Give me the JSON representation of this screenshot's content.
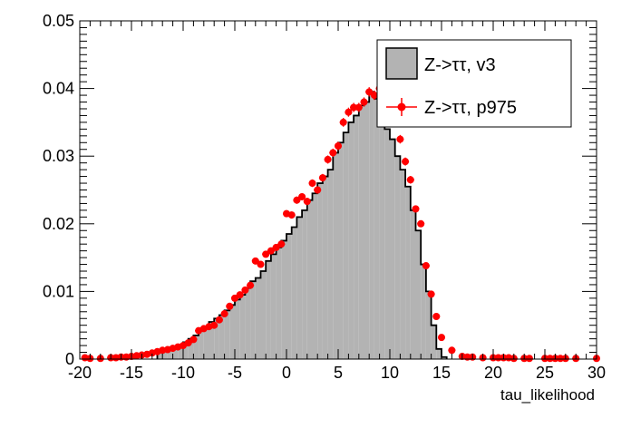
{
  "chart_data": {
    "type": "bar",
    "title": "",
    "xlabel": "tau_likelihood",
    "ylabel": "",
    "xlim": [
      -20,
      30
    ],
    "ylim": [
      0,
      0.05
    ],
    "x_ticks": [
      "-20",
      "-15",
      "-10",
      "-5",
      "0",
      "5",
      "10",
      "15",
      "20",
      "25",
      "30"
    ],
    "y_ticks": [
      "0",
      "0.01",
      "0.02",
      "0.03",
      "0.04",
      "0.05"
    ],
    "grid": false,
    "legend_position": "top-right",
    "bin_width": 0.5,
    "series": [
      {
        "name": "Z->ττ, v3",
        "style": "filled-histogram",
        "color": "#b3b3b3",
        "edge_color": "#000000",
        "x": [
          -12.5,
          -12.0,
          -11.5,
          -11.0,
          -10.5,
          -10.0,
          -9.5,
          -9.0,
          -8.5,
          -8.0,
          -7.5,
          -7.0,
          -6.5,
          -6.0,
          -5.5,
          -5.0,
          -4.5,
          -4.0,
          -3.5,
          -3.0,
          -2.5,
          -2.0,
          -1.5,
          -1.0,
          -0.5,
          0.0,
          0.5,
          1.0,
          1.5,
          2.0,
          2.5,
          3.0,
          3.5,
          4.0,
          4.5,
          5.0,
          5.5,
          6.0,
          6.5,
          7.0,
          7.5,
          8.0,
          8.5,
          9.0,
          9.5,
          10.0,
          10.5,
          11.0,
          11.5,
          12.0,
          12.5,
          13.0,
          13.5,
          14.0,
          14.5,
          15.0
        ],
        "values": [
          0.001,
          0.0012,
          0.0015,
          0.0018,
          0.002,
          0.0025,
          0.003,
          0.0035,
          0.0042,
          0.0048,
          0.0055,
          0.006,
          0.0065,
          0.0072,
          0.008,
          0.0088,
          0.0095,
          0.0105,
          0.0115,
          0.012,
          0.013,
          0.0145,
          0.0155,
          0.0165,
          0.0175,
          0.0185,
          0.0195,
          0.021,
          0.022,
          0.0235,
          0.0245,
          0.026,
          0.027,
          0.028,
          0.0305,
          0.032,
          0.0335,
          0.035,
          0.036,
          0.0375,
          0.038,
          0.0395,
          0.0385,
          0.0365,
          0.034,
          0.0325,
          0.03,
          0.028,
          0.0255,
          0.022,
          0.019,
          0.014,
          0.01,
          0.005,
          0.0015,
          0.0003
        ]
      },
      {
        "name": "Z->ττ, p975",
        "style": "points-with-errors",
        "color": "#ff0000",
        "x": [
          -19.5,
          -19.0,
          -18.0,
          -17.0,
          -16.5,
          -16.0,
          -15.5,
          -15.0,
          -14.5,
          -14.0,
          -13.5,
          -13.0,
          -12.5,
          -12.0,
          -11.5,
          -11.0,
          -10.5,
          -10.0,
          -9.5,
          -9.0,
          -8.5,
          -8.0,
          -7.5,
          -7.0,
          -6.5,
          -6.0,
          -5.5,
          -5.0,
          -4.5,
          -4.0,
          -3.5,
          -3.0,
          -2.5,
          -2.0,
          -1.5,
          -1.0,
          -0.5,
          0.0,
          0.5,
          1.0,
          1.5,
          2.0,
          2.5,
          3.0,
          3.5,
          4.0,
          4.5,
          5.0,
          5.5,
          6.0,
          6.5,
          7.0,
          7.5,
          8.0,
          8.5,
          9.0,
          9.5,
          10.0,
          10.5,
          11.0,
          11.5,
          12.0,
          12.5,
          13.0,
          13.5,
          14.0,
          14.5,
          15.0,
          16.0,
          17.0,
          17.5,
          18.0,
          19.0,
          20.0,
          20.5,
          21.0,
          21.5,
          22.0,
          23.0,
          23.5,
          25.0,
          25.5,
          26.0,
          26.5,
          27.0,
          28.0,
          30.0
        ],
        "values": [
          0.0002,
          0.0001,
          0.0001,
          0.0002,
          0.0002,
          0.0003,
          0.0003,
          0.0004,
          0.0005,
          0.0006,
          0.0007,
          0.0009,
          0.0011,
          0.0013,
          0.0014,
          0.0016,
          0.0018,
          0.002,
          0.0024,
          0.0029,
          0.0042,
          0.0045,
          0.0048,
          0.005,
          0.0058,
          0.0067,
          0.0078,
          0.009,
          0.0095,
          0.0102,
          0.0109,
          0.0145,
          0.014,
          0.0155,
          0.016,
          0.0165,
          0.017,
          0.0215,
          0.0213,
          0.0235,
          0.024,
          0.0233,
          0.026,
          0.025,
          0.0268,
          0.0295,
          0.0305,
          0.0315,
          0.035,
          0.0365,
          0.0372,
          0.0372,
          0.038,
          0.0395,
          0.039,
          0.04,
          0.0395,
          0.038,
          0.0365,
          0.0325,
          0.0292,
          0.0265,
          0.0222,
          0.02,
          0.0138,
          0.0096,
          0.0063,
          0.0032,
          0.0013,
          0.0004,
          0.0003,
          0.0003,
          0.0002,
          0.0002,
          0.0002,
          0.0002,
          0.0002,
          0.0001,
          0.0001,
          0.0001,
          0.0001,
          0.0001,
          0.0001,
          0.0001,
          0.0001,
          0.0001,
          0.0001
        ]
      }
    ]
  }
}
